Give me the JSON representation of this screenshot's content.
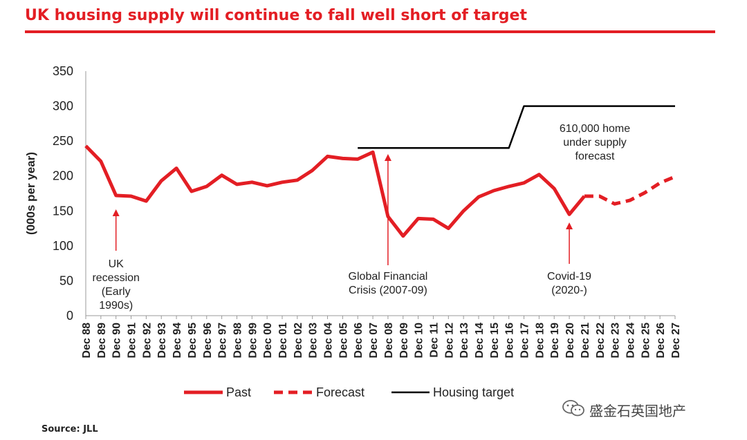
{
  "header": {
    "title": "UK housing supply will continue to fall well short of target"
  },
  "footer": {
    "source": "Source: JLL"
  },
  "watermark": {
    "text": "盛金石英国地产",
    "icon": "wechat-icon"
  },
  "chart_data": {
    "type": "line",
    "ylabel": "(000s per year)",
    "xlabel": "",
    "ylim": [
      0,
      350
    ],
    "yticks": [
      0,
      50,
      100,
      150,
      200,
      250,
      300,
      350
    ],
    "grid": false,
    "legend_position": "bottom",
    "categories": [
      "Dec 88",
      "Dec 89",
      "Dec 90",
      "Dec 91",
      "Dec 92",
      "Dec 93",
      "Dec 94",
      "Dec 95",
      "Dec 96",
      "Dec 97",
      "Dec 98",
      "Dec 99",
      "Dec 00",
      "Dec 01",
      "Dec 02",
      "Dec 03",
      "Dec 04",
      "Dec 05",
      "Dec 06",
      "Dec 07",
      "Dec 08",
      "Dec 09",
      "Dec 10",
      "Dec 11",
      "Dec 12",
      "Dec 13",
      "Dec 14",
      "Dec 15",
      "Dec 16",
      "Dec 17",
      "Dec 18",
      "Dec 19",
      "Dec 20",
      "Dec 21",
      "Dec 22",
      "Dec 23",
      "Dec 24",
      "Dec 25",
      "Dec 26",
      "Dec 27"
    ],
    "series": [
      {
        "name": "Past",
        "style": "solid",
        "color": "#e31e24",
        "values": [
          243,
          221,
          172,
          171,
          164,
          193,
          211,
          178,
          185,
          201,
          188,
          191,
          186,
          191,
          194,
          208,
          228,
          225,
          224,
          234,
          142,
          114,
          139,
          138,
          125,
          150,
          170,
          179,
          185,
          190,
          202,
          182,
          145,
          171,
          null,
          null,
          null,
          null,
          null,
          null
        ]
      },
      {
        "name": "Forecast",
        "style": "dashed",
        "color": "#e31e24",
        "values": [
          null,
          null,
          null,
          null,
          null,
          null,
          null,
          null,
          null,
          null,
          null,
          null,
          null,
          null,
          null,
          null,
          null,
          null,
          null,
          null,
          null,
          null,
          null,
          null,
          null,
          null,
          null,
          null,
          null,
          null,
          null,
          null,
          null,
          171,
          171,
          160,
          165,
          176,
          190,
          199
        ]
      },
      {
        "name": "Housing target",
        "style": "solid",
        "color": "#000000",
        "values": [
          null,
          null,
          null,
          null,
          null,
          null,
          null,
          null,
          null,
          null,
          null,
          null,
          null,
          null,
          null,
          null,
          null,
          null,
          240,
          240,
          240,
          240,
          240,
          240,
          240,
          240,
          240,
          240,
          240,
          300,
          300,
          300,
          300,
          300,
          300,
          300,
          300,
          300,
          300,
          300
        ]
      }
    ],
    "annotations": [
      {
        "category": "Dec 90",
        "lines": [
          "UK",
          "recession",
          "(Early",
          "1990s)"
        ]
      },
      {
        "category": "Dec 08",
        "lines": [
          "Global Financial",
          "Crisis (2007-09)"
        ]
      },
      {
        "category": "Dec 20",
        "lines": [
          "Covid-19",
          "(2020-)"
        ]
      },
      {
        "category": "Dec 23",
        "lines": [
          "610,000 home",
          "under supply",
          "forecast"
        ]
      }
    ]
  }
}
